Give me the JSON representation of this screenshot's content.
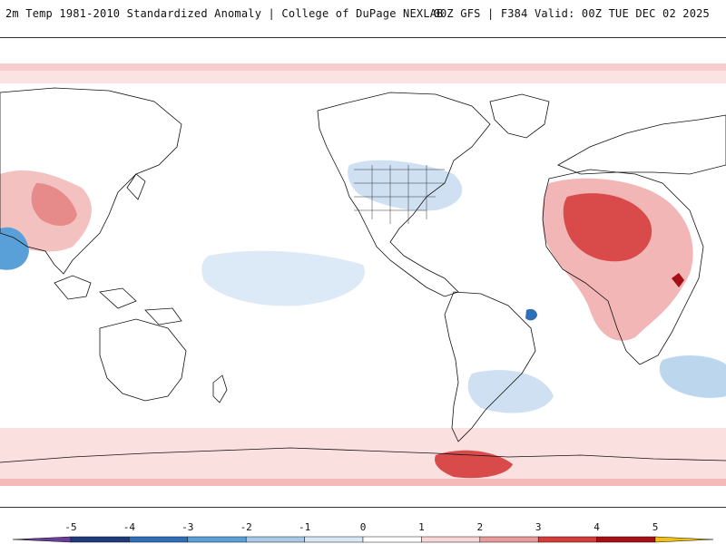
{
  "header": {
    "left_title": "2m Temp 1981-2010 Standardized Anomaly | College of DuPage NEXLAB",
    "right_title": "00Z GFS | F384 Valid: 00Z TUE DEC 02 2025"
  },
  "map": {
    "projection": "equirectangular",
    "center_longitude": 180,
    "background_color": "#ffffff",
    "boundary_color": "#111111"
  },
  "colorbar": {
    "ticks": [
      "-5",
      "-4",
      "-3",
      "-2",
      "-1",
      "0",
      "1",
      "2",
      "3",
      "4",
      "5"
    ],
    "colors": [
      "#6a3d9a",
      "#1f3a7a",
      "#2e6fb8",
      "#5aa0d8",
      "#a9cbe8",
      "#d9e8f5",
      "#ffffff",
      "#f8d6d6",
      "#e99a9a",
      "#d43c3c",
      "#a50f15",
      "#6b0010",
      "#f2c012"
    ]
  }
}
